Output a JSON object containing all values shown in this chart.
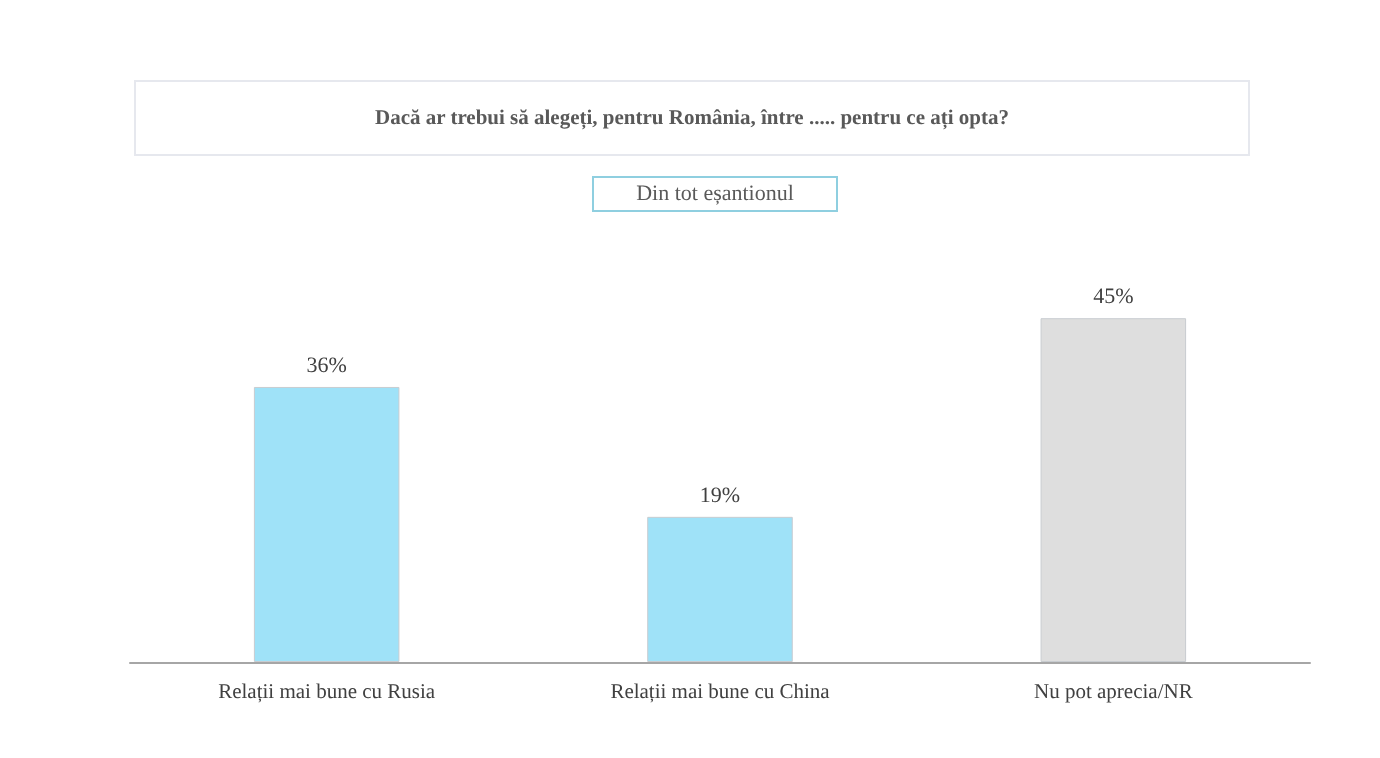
{
  "chart_data": {
    "type": "bar",
    "title": "Dacă ar trebui să alegeți, pentru România, între ..... pentru ce ați opta?",
    "subtitle": "Din tot eșantionul",
    "categories": [
      "Relații mai bune cu Rusia",
      "Relații mai bune cu China",
      "Nu pot aprecia/NR"
    ],
    "values": [
      36,
      19,
      45
    ],
    "value_labels": [
      "36%",
      "19%",
      "45%"
    ],
    "colors": [
      "#9fe2f8",
      "#9fe2f8",
      "#dedede"
    ]
  }
}
